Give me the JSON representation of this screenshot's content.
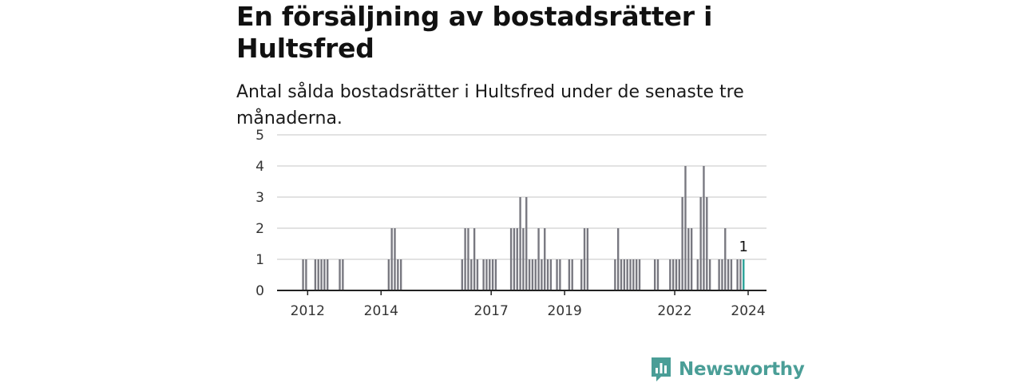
{
  "title": "En försäljning av bostadsrätter i Hultsfred",
  "subtitle": "Antal sålda bostadsrätter i Hultsfred under de senaste tre månaderna.",
  "brand": {
    "name": "Newsworthy",
    "color": "#4a9e97",
    "icon": "bar-chart-speech-bubble-icon"
  },
  "colors": {
    "bar": "#787880",
    "highlight": "#2aa198",
    "grid": "#d9d9d9",
    "axis": "#222222"
  },
  "chart_data": {
    "type": "bar",
    "x_unit": "month",
    "ylim": [
      0,
      5
    ],
    "yticks": [
      0,
      1,
      2,
      3,
      4,
      5
    ],
    "xticks": [
      "2012",
      "2014",
      "2017",
      "2019",
      "2022",
      "2024"
    ],
    "grid": true,
    "highlight_label": "1",
    "series": [
      {
        "values": [
          {
            "x": "2012-05",
            "y": 1
          },
          {
            "x": "2012-06",
            "y": 1
          },
          {
            "x": "2012-09",
            "y": 1
          },
          {
            "x": "2012-10",
            "y": 1
          },
          {
            "x": "2012-11",
            "y": 1
          },
          {
            "x": "2012-12",
            "y": 1
          },
          {
            "x": "2013-01",
            "y": 1
          },
          {
            "x": "2013-05",
            "y": 1
          },
          {
            "x": "2013-06",
            "y": 1
          },
          {
            "x": "2014-09",
            "y": 1
          },
          {
            "x": "2014-10",
            "y": 2
          },
          {
            "x": "2014-11",
            "y": 2
          },
          {
            "x": "2014-12",
            "y": 1
          },
          {
            "x": "2015-01",
            "y": 1
          },
          {
            "x": "2016-09",
            "y": 1
          },
          {
            "x": "2016-10",
            "y": 2
          },
          {
            "x": "2016-11",
            "y": 2
          },
          {
            "x": "2016-12",
            "y": 1
          },
          {
            "x": "2017-01",
            "y": 2
          },
          {
            "x": "2017-02",
            "y": 1
          },
          {
            "x": "2017-04",
            "y": 1
          },
          {
            "x": "2017-05",
            "y": 1
          },
          {
            "x": "2017-06",
            "y": 1
          },
          {
            "x": "2017-07",
            "y": 1
          },
          {
            "x": "2017-08",
            "y": 1
          },
          {
            "x": "2018-01",
            "y": 2
          },
          {
            "x": "2018-02",
            "y": 2
          },
          {
            "x": "2018-03",
            "y": 2
          },
          {
            "x": "2018-04",
            "y": 3
          },
          {
            "x": "2018-05",
            "y": 2
          },
          {
            "x": "2018-06",
            "y": 3
          },
          {
            "x": "2018-07",
            "y": 1
          },
          {
            "x": "2018-08",
            "y": 1
          },
          {
            "x": "2018-09",
            "y": 1
          },
          {
            "x": "2018-10",
            "y": 2
          },
          {
            "x": "2018-11",
            "y": 1
          },
          {
            "x": "2018-12",
            "y": 2
          },
          {
            "x": "2019-01",
            "y": 1
          },
          {
            "x": "2019-02",
            "y": 1
          },
          {
            "x": "2019-04",
            "y": 1
          },
          {
            "x": "2019-05",
            "y": 1
          },
          {
            "x": "2019-08",
            "y": 1
          },
          {
            "x": "2019-09",
            "y": 1
          },
          {
            "x": "2019-12",
            "y": 1
          },
          {
            "x": "2020-01",
            "y": 2
          },
          {
            "x": "2020-02",
            "y": 2
          },
          {
            "x": "2020-11",
            "y": 1
          },
          {
            "x": "2020-12",
            "y": 2
          },
          {
            "x": "2021-01",
            "y": 1
          },
          {
            "x": "2021-02",
            "y": 1
          },
          {
            "x": "2021-03",
            "y": 1
          },
          {
            "x": "2021-04",
            "y": 1
          },
          {
            "x": "2021-05",
            "y": 1
          },
          {
            "x": "2021-06",
            "y": 1
          },
          {
            "x": "2021-07",
            "y": 1
          },
          {
            "x": "2021-12",
            "y": 1
          },
          {
            "x": "2022-01",
            "y": 1
          },
          {
            "x": "2022-05",
            "y": 1
          },
          {
            "x": "2022-06",
            "y": 1
          },
          {
            "x": "2022-07",
            "y": 1
          },
          {
            "x": "2022-08",
            "y": 1
          },
          {
            "x": "2022-09",
            "y": 3
          },
          {
            "x": "2022-10",
            "y": 4
          },
          {
            "x": "2022-11",
            "y": 2
          },
          {
            "x": "2022-12",
            "y": 2
          },
          {
            "x": "2023-02",
            "y": 1
          },
          {
            "x": "2023-03",
            "y": 3
          },
          {
            "x": "2023-04",
            "y": 4
          },
          {
            "x": "2023-05",
            "y": 3
          },
          {
            "x": "2023-06",
            "y": 1
          },
          {
            "x": "2023-09",
            "y": 1
          },
          {
            "x": "2023-10",
            "y": 1
          },
          {
            "x": "2023-11",
            "y": 2
          },
          {
            "x": "2023-12",
            "y": 1
          },
          {
            "x": "2024-01",
            "y": 1
          },
          {
            "x": "2024-03",
            "y": 1
          },
          {
            "x": "2024-04",
            "y": 1
          },
          {
            "x": "2024-05",
            "y": 1,
            "highlight": true
          }
        ]
      }
    ]
  }
}
